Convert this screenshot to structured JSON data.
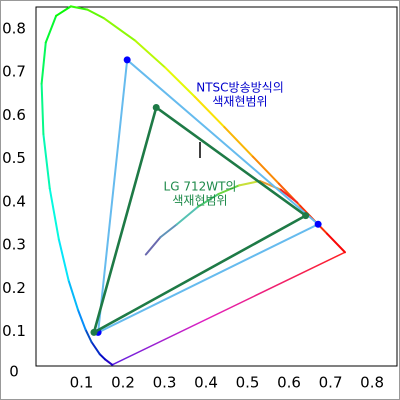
{
  "chart_data": {
    "type": "chromaticity",
    "xlim": [
      0,
      0.86
    ],
    "ylim": [
      0,
      0.83
    ],
    "xticks": [
      0.1,
      0.2,
      0.3,
      0.4,
      0.5,
      0.6,
      0.7,
      0.8
    ],
    "yticks": [
      0,
      0.1,
      0.2,
      0.3,
      0.4,
      0.5,
      0.6,
      0.7,
      0.8
    ],
    "spectral_locus": {
      "x": [
        0.1741,
        0.1566,
        0.144,
        0.1241,
        0.1096,
        0.0913,
        0.0687,
        0.0454,
        0.0235,
        0.0082,
        0.0039,
        0.0139,
        0.0389,
        0.0743,
        0.1142,
        0.1547,
        0.2296,
        0.3016,
        0.3731,
        0.4441,
        0.5125,
        0.5752,
        0.627,
        0.6915,
        0.7347
      ],
      "y": [
        0.005,
        0.0177,
        0.0297,
        0.0578,
        0.0868,
        0.1327,
        0.2007,
        0.295,
        0.4127,
        0.5384,
        0.6548,
        0.7502,
        0.812,
        0.8338,
        0.8262,
        0.8059,
        0.7543,
        0.6923,
        0.6245,
        0.5547,
        0.4866,
        0.4242,
        0.3725,
        0.3083,
        0.2653
      ]
    },
    "planckian_locus": {
      "x": [
        0.255,
        0.29,
        0.33,
        0.38,
        0.43,
        0.48,
        0.53,
        0.58,
        0.62
      ],
      "y": [
        0.26,
        0.3,
        0.33,
        0.37,
        0.4,
        0.42,
        0.43,
        0.41,
        0.38
      ]
    },
    "gamuts": [
      {
        "label": [
          "NTSC방송방식의",
          "색재현범위"
        ],
        "color": "#66bbee",
        "point_color": "#0000ff",
        "x": [
          0.21,
          0.67,
          0.14
        ],
        "y": [
          0.71,
          0.33,
          0.08
        ]
      },
      {
        "label": [
          "LG 712WT의",
          "색재현범위"
        ],
        "color": "#1e7a46",
        "point_color": "#1e7a46",
        "x": [
          0.28,
          0.64,
          0.13
        ],
        "y": [
          0.6,
          0.35,
          0.08
        ]
      }
    ]
  }
}
